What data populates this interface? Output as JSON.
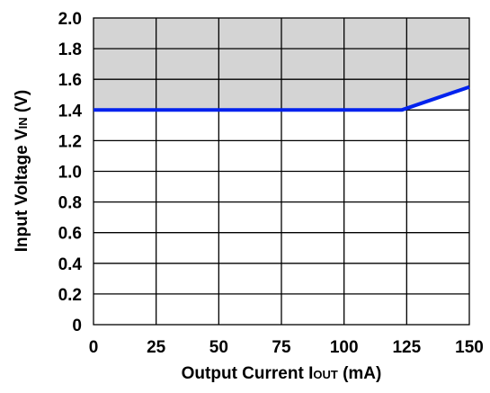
{
  "chart_data": {
    "type": "line",
    "title": "",
    "xlabel": {
      "prefix": "Output Current I",
      "subscript": "OUT",
      "suffix": " (mA)"
    },
    "ylabel": {
      "prefix": "Input Voltage V",
      "subscript": "IN",
      "suffix": " (V)"
    },
    "xlim": [
      0,
      150
    ],
    "ylim": [
      0,
      2.0
    ],
    "xticks": [
      "0",
      "25",
      "50",
      "75",
      "100",
      "125",
      "150"
    ],
    "yticks": [
      "0",
      "0.2",
      "0.4",
      "0.6",
      "0.8",
      "1.0",
      "1.2",
      "1.4",
      "1.6",
      "1.8",
      "2.0"
    ],
    "grid": true,
    "shaded_region": {
      "description": "area above curve",
      "color": "#d4d4d4"
    },
    "series": [
      {
        "color": "#0022ee",
        "x": [
          0,
          123,
          150
        ],
        "y": [
          1.4,
          1.4,
          1.55
        ]
      }
    ]
  }
}
